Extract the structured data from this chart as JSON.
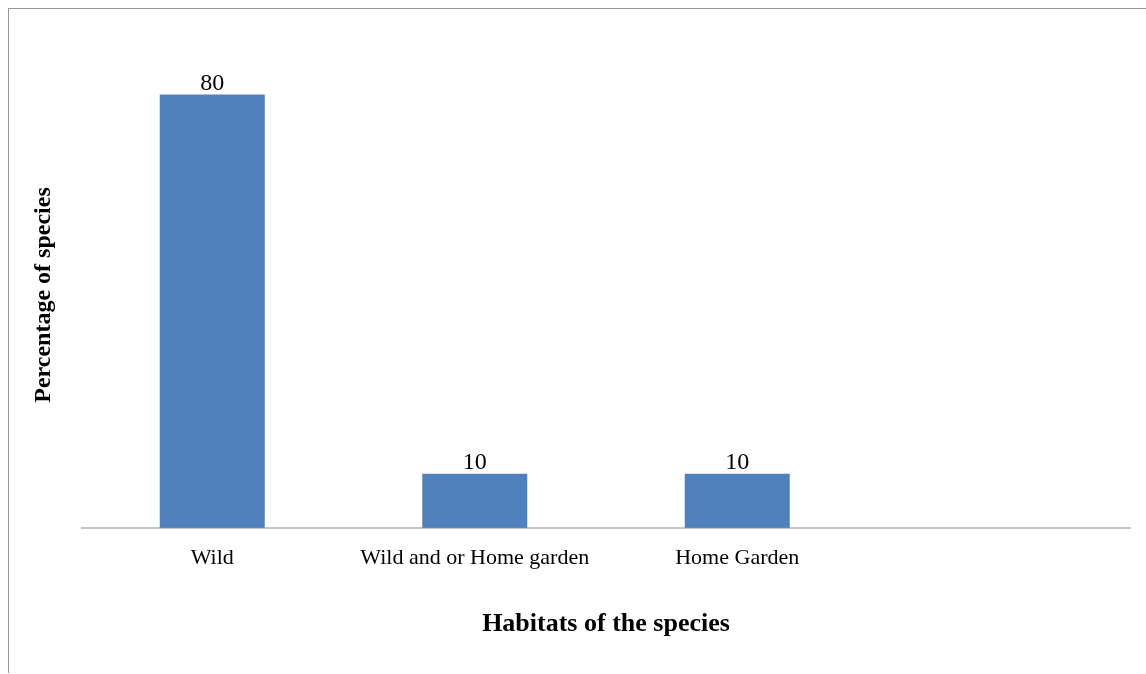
{
  "chart_data": {
    "type": "bar",
    "categories": [
      "Wild",
      "Wild and or Home garden",
      "Home Garden",
      null
    ],
    "values": [
      80,
      10,
      10,
      null
    ],
    "color": "#4f81bd",
    "xlabel": "Habitats of the species",
    "ylabel": "Percentage of species",
    "data_labels": true
  }
}
